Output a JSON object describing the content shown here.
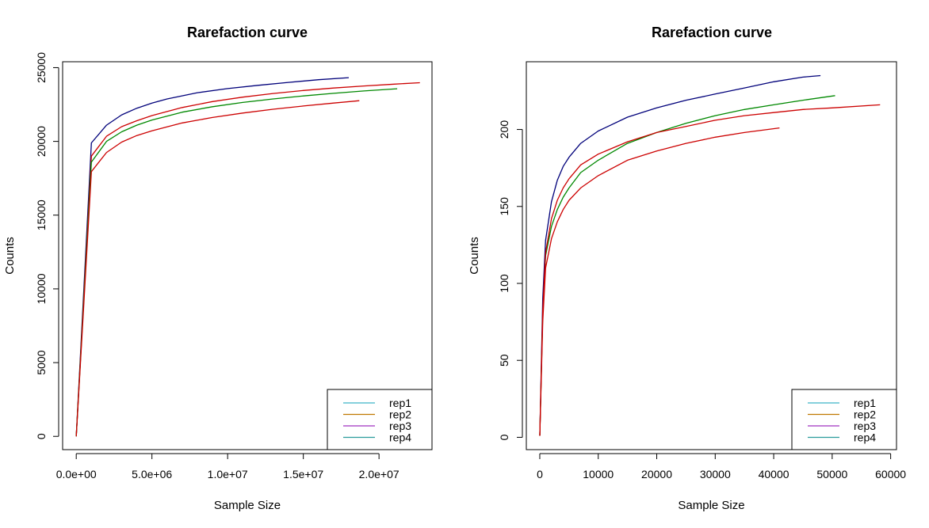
{
  "chart_data": [
    {
      "type": "line",
      "title": "Rarefaction curve",
      "xlabel": "Sample Size",
      "ylabel": "Counts",
      "xlim": [
        -900000,
        23500000
      ],
      "ylim": [
        -900,
        25400
      ],
      "xticks": [
        0,
        5000000,
        10000000,
        15000000,
        20000000
      ],
      "xtick_labels": [
        "0.0e+00",
        "5.0e+06",
        "1.0e+07",
        "1.5e+07",
        "2.0e+07"
      ],
      "yticks": [
        0,
        5000,
        10000,
        15000,
        20000,
        25000
      ],
      "ytick_labels": [
        "0",
        "5000",
        "10000",
        "15000",
        "20000",
        "25000"
      ],
      "series": [
        {
          "color": "#00007a",
          "points": [
            [
              0,
              0
            ],
            [
              1000000,
              19900
            ],
            [
              2000000,
              21100
            ],
            [
              3000000,
              21800
            ],
            [
              4000000,
              22250
            ],
            [
              5000000,
              22600
            ],
            [
              6000000,
              22880
            ],
            [
              8000000,
              23300
            ],
            [
              10000000,
              23580
            ],
            [
              12000000,
              23800
            ],
            [
              14000000,
              24000
            ],
            [
              16000000,
              24180
            ],
            [
              18000000,
              24320
            ]
          ]
        },
        {
          "color": "#cc0000",
          "points": [
            [
              0,
              0
            ],
            [
              1000000,
              19000
            ],
            [
              2000000,
              20350
            ],
            [
              3000000,
              21000
            ],
            [
              4000000,
              21400
            ],
            [
              5000000,
              21750
            ],
            [
              7000000,
              22300
            ],
            [
              9000000,
              22700
            ],
            [
              11000000,
              23000
            ],
            [
              13000000,
              23250
            ],
            [
              15000000,
              23450
            ],
            [
              17000000,
              23620
            ],
            [
              19000000,
              23760
            ],
            [
              21000000,
              23880
            ],
            [
              22700000,
              23980
            ]
          ]
        },
        {
          "color": "#008800",
          "points": [
            [
              0,
              0
            ],
            [
              1000000,
              18600
            ],
            [
              2000000,
              20000
            ],
            [
              3000000,
              20650
            ],
            [
              4000000,
              21100
            ],
            [
              5000000,
              21450
            ],
            [
              7000000,
              21980
            ],
            [
              9000000,
              22350
            ],
            [
              11000000,
              22640
            ],
            [
              13000000,
              22880
            ],
            [
              15000000,
              23080
            ],
            [
              17000000,
              23260
            ],
            [
              19000000,
              23420
            ],
            [
              21200000,
              23570
            ]
          ]
        },
        {
          "color": "#cc0000",
          "points": [
            [
              0,
              0
            ],
            [
              1000000,
              17950
            ],
            [
              2000000,
              19250
            ],
            [
              3000000,
              19950
            ],
            [
              4000000,
              20400
            ],
            [
              5000000,
              20720
            ],
            [
              7000000,
              21250
            ],
            [
              9000000,
              21620
            ],
            [
              11000000,
              21920
            ],
            [
              13000000,
              22180
            ],
            [
              15000000,
              22400
            ],
            [
              17000000,
              22600
            ],
            [
              18700000,
              22760
            ]
          ]
        }
      ],
      "legend": {
        "position": "bottom-right",
        "entries": [
          {
            "label": "rep1",
            "color": "#3cb4c8"
          },
          {
            "label": "rep2",
            "color": "#c07800"
          },
          {
            "label": "rep3",
            "color": "#a030c0"
          },
          {
            "label": "rep4",
            "color": "#2a9c9c"
          }
        ]
      }
    },
    {
      "type": "line",
      "title": "Rarefaction curve",
      "xlabel": "Sample Size",
      "ylabel": "Counts",
      "xlim": [
        -2300,
        61000
      ],
      "ylim": [
        -8,
        244
      ],
      "xticks": [
        0,
        10000,
        20000,
        30000,
        40000,
        50000,
        60000
      ],
      "xtick_labels": [
        "0",
        "10000",
        "20000",
        "30000",
        "40000",
        "50000",
        "60000"
      ],
      "yticks": [
        0,
        50,
        100,
        150,
        200
      ],
      "ytick_labels": [
        "0",
        "50",
        "100",
        "150",
        "200"
      ],
      "series": [
        {
          "color": "#00007a",
          "points": [
            [
              0,
              1
            ],
            [
              500,
              90
            ],
            [
              1000,
              128
            ],
            [
              2000,
              153
            ],
            [
              3000,
              167
            ],
            [
              4000,
              176
            ],
            [
              5000,
              182
            ],
            [
              7000,
              191
            ],
            [
              10000,
              199
            ],
            [
              15000,
              208
            ],
            [
              20000,
              214
            ],
            [
              25000,
              219
            ],
            [
              30000,
              223
            ],
            [
              35000,
              227
            ],
            [
              40000,
              231
            ],
            [
              45000,
              234
            ],
            [
              48000,
              235
            ]
          ]
        },
        {
          "color": "#008800",
          "points": [
            [
              0,
              1
            ],
            [
              500,
              80
            ],
            [
              1000,
              118
            ],
            [
              2000,
              137
            ],
            [
              3000,
              148
            ],
            [
              4000,
              156
            ],
            [
              5000,
              162
            ],
            [
              7000,
              172
            ],
            [
              10000,
              180
            ],
            [
              15000,
              191
            ],
            [
              20000,
              198
            ],
            [
              25000,
              204
            ],
            [
              30000,
              209
            ],
            [
              35000,
              213
            ],
            [
              40000,
              216
            ],
            [
              45000,
              219
            ],
            [
              50500,
              222
            ]
          ]
        },
        {
          "color": "#cc0000",
          "points": [
            [
              0,
              1
            ],
            [
              500,
              82
            ],
            [
              1000,
              120
            ],
            [
              2000,
              142
            ],
            [
              3000,
              154
            ],
            [
              4000,
              162
            ],
            [
              5000,
              168
            ],
            [
              7000,
              177
            ],
            [
              10000,
              184
            ],
            [
              15000,
              192
            ],
            [
              20000,
              198
            ],
            [
              25000,
              202
            ],
            [
              30000,
              206
            ],
            [
              35000,
              209
            ],
            [
              40000,
              211
            ],
            [
              45000,
              213
            ],
            [
              50000,
              214
            ],
            [
              58200,
              216
            ]
          ]
        },
        {
          "color": "#cc0000",
          "points": [
            [
              0,
              1
            ],
            [
              500,
              75
            ],
            [
              1000,
              110
            ],
            [
              2000,
              129
            ],
            [
              3000,
              140
            ],
            [
              4000,
              148
            ],
            [
              5000,
              154
            ],
            [
              7000,
              162
            ],
            [
              10000,
              170
            ],
            [
              15000,
              180
            ],
            [
              20000,
              186
            ],
            [
              25000,
              191
            ],
            [
              30000,
              195
            ],
            [
              35000,
              198
            ],
            [
              41000,
              201
            ]
          ]
        }
      ],
      "legend": {
        "position": "bottom-right",
        "entries": [
          {
            "label": "rep1",
            "color": "#3cb4c8"
          },
          {
            "label": "rep2",
            "color": "#c07800"
          },
          {
            "label": "rep3",
            "color": "#a030c0"
          },
          {
            "label": "rep4",
            "color": "#2a9c9c"
          }
        ]
      }
    }
  ]
}
